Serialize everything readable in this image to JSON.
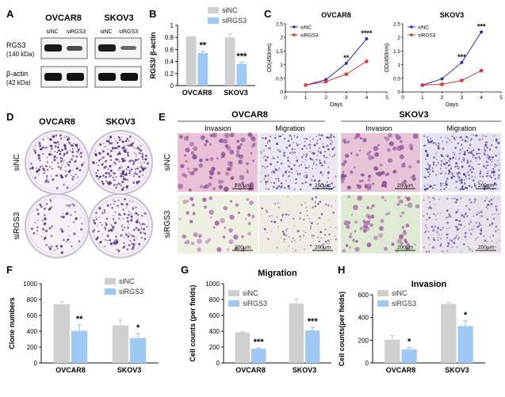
{
  "colors": {
    "siNC": "#cfcfcf",
    "siRGS3": "#9ec9f5",
    "line_siNC": "#2a2ad8",
    "line_siRGS3": "#e23030",
    "stain_dark": "#5b2a86",
    "tissue_pink": "#e7b7d0",
    "dish_rim": "#e9e2ee"
  },
  "panels": {
    "A": {
      "letter": "A",
      "cell_lines": [
        "OVCAR8",
        "SKOV3"
      ],
      "lane_labels": [
        "siNC",
        "siRGS3",
        "siNC",
        "siRGS3"
      ],
      "rows": [
        {
          "name": "RGS3",
          "size": "(140 kDa)"
        },
        {
          "name": "β-actin",
          "size": "(42 kDa)"
        }
      ]
    },
    "B": {
      "letter": "B"
    },
    "C": {
      "letter": "C"
    },
    "D": {
      "letter": "D",
      "col_labels": [
        "OVCAR8",
        "SKOV3"
      ],
      "row_labels": [
        "siNC",
        "siRGS3"
      ]
    },
    "E": {
      "letter": "E",
      "groups": [
        "OVCAR8",
        "SKOV3"
      ],
      "col_labels": [
        "Invasion",
        "Migration",
        "Invasion",
        "Migration"
      ],
      "row_labels": [
        "siNC",
        "siRGS3"
      ],
      "scale_bar": "200μm"
    },
    "F": {
      "letter": "F"
    },
    "G": {
      "letter": "G"
    },
    "H": {
      "letter": "H"
    }
  },
  "chart_data": [
    {
      "id": "B",
      "type": "bar",
      "title": "",
      "ylabel": "RGS3/ β-actin",
      "xlabel": "",
      "ylim": [
        0,
        1.0
      ],
      "yticks": [
        0,
        0.2,
        0.4,
        0.6,
        0.8,
        1.0
      ],
      "categories": [
        "OVCAR8",
        "SKOV3"
      ],
      "series": [
        {
          "name": "siNC",
          "values": [
            0.82,
            0.8
          ],
          "errors": [
            0.0,
            0.06
          ]
        },
        {
          "name": "siRGS3",
          "values": [
            0.54,
            0.36
          ],
          "errors": [
            0.03,
            0.03
          ]
        }
      ],
      "significance": [
        "**",
        "***"
      ],
      "legend": "top-right"
    },
    {
      "id": "C1",
      "type": "line",
      "title": "OVCAR8",
      "xlabel": "Days",
      "ylabel": "OD(450nm)",
      "xlim": [
        0,
        5
      ],
      "ylim": [
        0,
        2.5
      ],
      "xticks": [
        0,
        1,
        2,
        3,
        4,
        5
      ],
      "yticks": [
        0,
        0.5,
        1.0,
        1.5,
        2.0,
        2.5
      ],
      "x": [
        1,
        2,
        3,
        4
      ],
      "series": [
        {
          "name": "siNC",
          "values": [
            0.25,
            0.45,
            1.05,
            1.95
          ]
        },
        {
          "name": "siRGS3",
          "values": [
            0.25,
            0.38,
            0.65,
            1.12
          ]
        }
      ],
      "significance": [
        "",
        "",
        "**",
        "****"
      ],
      "legend": "top-left"
    },
    {
      "id": "C2",
      "type": "line",
      "title": "SKOV3",
      "xlabel": "Days",
      "ylabel": "OD(450nm)",
      "xlim": [
        0,
        5
      ],
      "ylim": [
        0,
        2.5
      ],
      "xticks": [
        0,
        1,
        2,
        3,
        4,
        5
      ],
      "yticks": [
        0,
        0.5,
        1.0,
        1.5,
        2.0,
        2.5
      ],
      "x": [
        1,
        2,
        3,
        4
      ],
      "series": [
        {
          "name": "siNC",
          "values": [
            0.25,
            0.48,
            1.08,
            2.2
          ]
        },
        {
          "name": "siRGS3",
          "values": [
            0.25,
            0.28,
            0.42,
            0.78
          ]
        }
      ],
      "significance": [
        "",
        "",
        "***",
        "***"
      ],
      "legend": "top-left"
    },
    {
      "id": "F",
      "type": "bar",
      "title": "",
      "ylabel": "Clone numbers",
      "xlabel": "",
      "ylim": [
        0,
        1000
      ],
      "yticks": [
        0,
        200,
        400,
        600,
        800,
        1000
      ],
      "categories": [
        "OVCAR8",
        "SKOV3"
      ],
      "series": [
        {
          "name": "siNC",
          "values": [
            740,
            475
          ],
          "errors": [
            30,
            65
          ]
        },
        {
          "name": "siRGS3",
          "values": [
            405,
            315
          ],
          "errors": [
            75,
            55
          ]
        }
      ],
      "significance": [
        "**",
        "*"
      ],
      "legend": "top-right"
    },
    {
      "id": "G",
      "type": "bar",
      "title": "Migration",
      "ylabel": "Cell counts (per fields)",
      "xlabel": "",
      "ylim": [
        0,
        1000
      ],
      "yticks": [
        0,
        200,
        400,
        600,
        800,
        1000
      ],
      "categories": [
        "OVCAR8",
        "SKOV3"
      ],
      "series": [
        {
          "name": "siNC",
          "values": [
            385,
            750
          ],
          "errors": [
            10,
            55
          ]
        },
        {
          "name": "siRGS3",
          "values": [
            180,
            410
          ],
          "errors": [
            10,
            40
          ]
        }
      ],
      "significance": [
        "***",
        "***"
      ],
      "legend": "top-left"
    },
    {
      "id": "H",
      "type": "bar",
      "title": "Invasion",
      "ylabel": "Cell counts(per fields)",
      "xlabel": "",
      "ylim": [
        0,
        600
      ],
      "yticks": [
        0,
        200,
        400,
        600
      ],
      "categories": [
        "OVCAR8",
        "SKOV3"
      ],
      "series": [
        {
          "name": "siNC",
          "values": [
            205,
            520
          ],
          "errors": [
            35,
            15
          ]
        },
        {
          "name": "siRGS3",
          "values": [
            120,
            325
          ],
          "errors": [
            15,
            45
          ]
        }
      ],
      "significance": [
        "*",
        "*"
      ],
      "legend": "top-left"
    }
  ]
}
